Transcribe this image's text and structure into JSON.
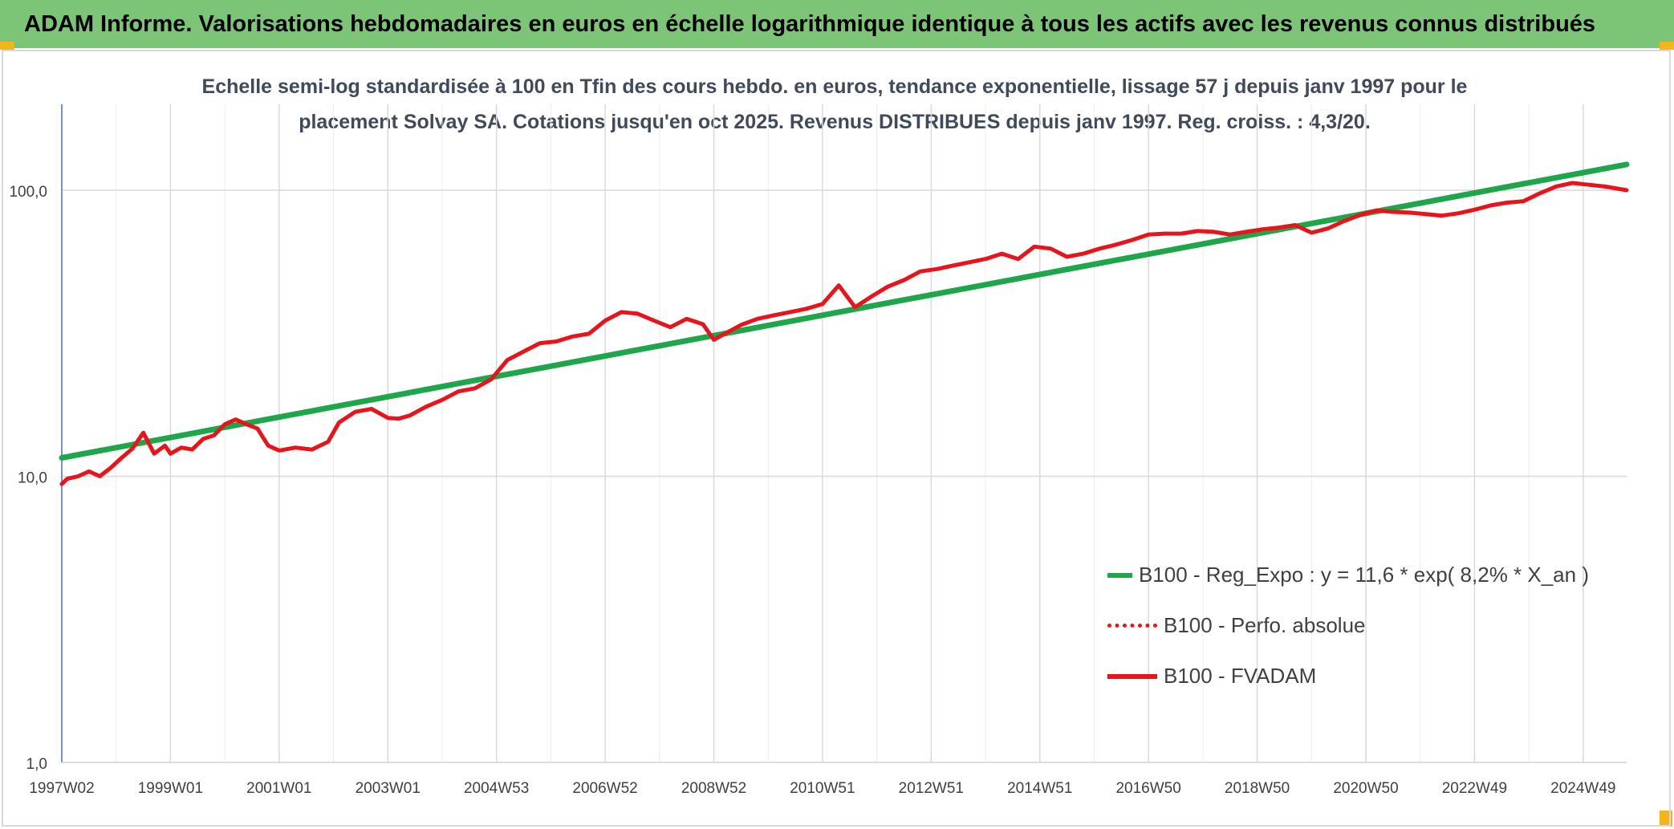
{
  "header": {
    "title": "ADAM Informe. Valorisations hebdomadaires en euros en échelle logarithmique identique à tous les actifs avec les revenus connus distribués"
  },
  "colors": {
    "banner": "#7cc576",
    "regression": "#1fa64a",
    "fvadam": "#e8141c",
    "perfo": "#e8141c"
  },
  "chart_data": {
    "type": "line",
    "title_line1": "Echelle semi-log standardisée à 100 en Tfin des cours hebdo. en euros, tendance exponentielle, lissage 57 j depuis janv 1997 pour le",
    "title_line2": "placement Solvay SA. Cotations jusqu'en oct 2025. Revenus DISTRIBUES depuis janv 1997. Reg. croiss. : 4,3/20.",
    "y_scale": "log",
    "ylim": [
      1,
      100
    ],
    "y_ticks": [
      "1,0",
      "10,0",
      "100,0"
    ],
    "x_range": [
      1997.0,
      2025.8
    ],
    "x_ticks": [
      {
        "label": "1997W02",
        "x": 1997.0
      },
      {
        "label": "1999W01",
        "x": 1999.0
      },
      {
        "label": "2001W01",
        "x": 2001.0
      },
      {
        "label": "2003W01",
        "x": 2003.0
      },
      {
        "label": "2004W53",
        "x": 2005.0
      },
      {
        "label": "2006W52",
        "x": 2007.0
      },
      {
        "label": "2008W52",
        "x": 2009.0
      },
      {
        "label": "2010W51",
        "x": 2011.0
      },
      {
        "label": "2012W51",
        "x": 2013.0
      },
      {
        "label": "2014W51",
        "x": 2015.0
      },
      {
        "label": "2016W50",
        "x": 2017.0
      },
      {
        "label": "2018W50",
        "x": 2019.0
      },
      {
        "label": "2020W50",
        "x": 2021.0
      },
      {
        "label": "2022W49",
        "x": 2023.0
      },
      {
        "label": "2024W49",
        "x": 2025.0
      }
    ],
    "grid": true,
    "legend_position": "bottom-right",
    "series": [
      {
        "name": "B100 - Reg_Expo : y = 11,6 * exp( 8,2% *  X_an )",
        "style": "solid",
        "x": [
          1997.0,
          2025.8
        ],
        "y": [
          11.6,
          123
        ]
      },
      {
        "name": "B100 - Perfo. absolue",
        "style": "dotted",
        "x": [],
        "y": []
      },
      {
        "name": "B100 - FVADAM",
        "style": "solid",
        "x": [
          1997.0,
          1997.1,
          1997.3,
          1997.5,
          1997.7,
          1997.9,
          1998.1,
          1998.3,
          1998.5,
          1998.7,
          1998.9,
          1999.0,
          1999.2,
          1999.4,
          1999.6,
          1999.8,
          2000.0,
          2000.2,
          2000.4,
          2000.6,
          2000.8,
          2001.0,
          2001.3,
          2001.6,
          2001.9,
          2002.1,
          2002.4,
          2002.7,
          2003.0,
          2003.2,
          2003.4,
          2003.7,
          2004.0,
          2004.3,
          2004.6,
          2004.9,
          2005.2,
          2005.5,
          2005.8,
          2006.1,
          2006.4,
          2006.7,
          2007.0,
          2007.3,
          2007.6,
          2007.9,
          2008.2,
          2008.5,
          2008.8,
          2009.0,
          2009.2,
          2009.5,
          2009.8,
          2010.1,
          2010.4,
          2010.7,
          2011.0,
          2011.3,
          2011.6,
          2011.9,
          2012.2,
          2012.5,
          2012.8,
          2013.1,
          2013.4,
          2013.7,
          2014.0,
          2014.3,
          2014.6,
          2014.9,
          2015.2,
          2015.5,
          2015.8,
          2016.1,
          2016.4,
          2016.7,
          2017.0,
          2017.3,
          2017.6,
          2017.9,
          2018.2,
          2018.5,
          2018.8,
          2019.1,
          2019.4,
          2019.7,
          2020.0,
          2020.3,
          2020.6,
          2020.9,
          2021.2,
          2021.5,
          2021.8,
          2022.1,
          2022.4,
          2022.7,
          2023.0,
          2023.3,
          2023.6,
          2023.9,
          2024.2,
          2024.5,
          2024.8,
          2025.1,
          2025.4,
          2025.8
        ],
        "y": [
          9.4,
          9.8,
          10.0,
          10.4,
          10.0,
          10.7,
          11.6,
          12.5,
          14.2,
          12.0,
          12.8,
          12.0,
          12.6,
          12.4,
          13.5,
          13.9,
          15.2,
          15.8,
          15.2,
          14.7,
          12.8,
          12.3,
          12.6,
          12.4,
          13.2,
          15.4,
          16.8,
          17.2,
          16.0,
          15.9,
          16.3,
          17.5,
          18.5,
          19.8,
          20.3,
          21.8,
          25.5,
          27.3,
          29.2,
          29.6,
          30.8,
          31.5,
          35.0,
          37.5,
          37.0,
          35.0,
          33.2,
          35.5,
          34.0,
          30.0,
          31.5,
          33.8,
          35.5,
          36.5,
          37.5,
          38.5,
          40.0,
          46.5,
          39.0,
          42.5,
          46.0,
          48.5,
          52.0,
          53.0,
          54.5,
          56.0,
          57.5,
          60.0,
          57.5,
          63.5,
          62.5,
          58.5,
          60.0,
          62.5,
          64.5,
          67.0,
          70.0,
          70.5,
          70.5,
          72.0,
          71.5,
          70.0,
          71.5,
          73.0,
          74.0,
          75.5,
          71.0,
          73.5,
          78.0,
          82.0,
          85.0,
          84.0,
          83.5,
          82.5,
          81.5,
          83.0,
          85.5,
          88.5,
          90.5,
          91.5,
          97.5,
          103.0,
          106.0,
          104.5,
          103.0,
          100.0
        ]
      }
    ]
  }
}
